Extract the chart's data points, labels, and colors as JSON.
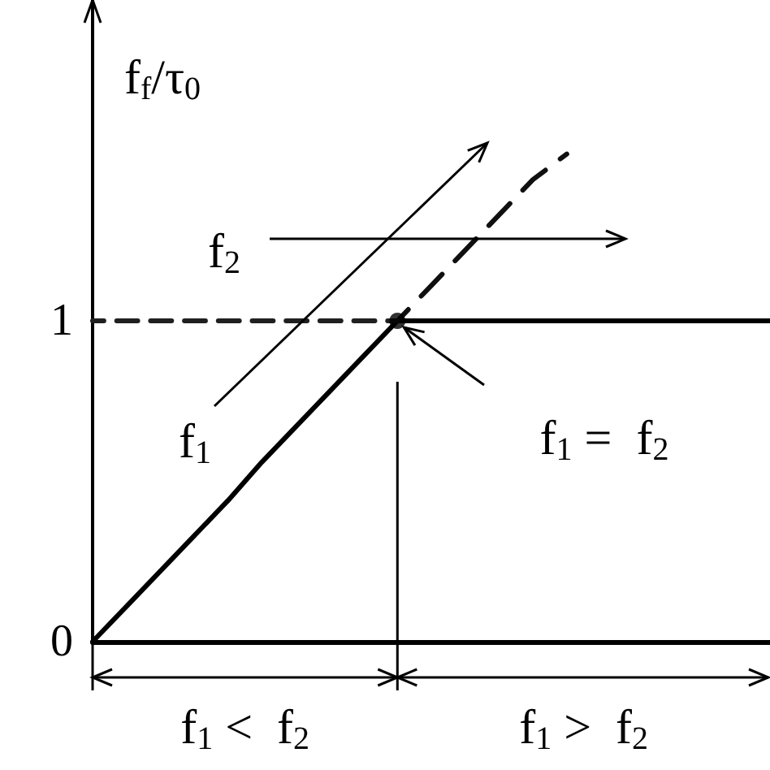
{
  "chart_data": {
    "type": "line",
    "ylabel": "f$_{f}$/τ$_{0}$",
    "categories": [
      null,
      null,
      null,
      null,
      null,
      null,
      null,
      null,
      null,
      null,
      null,
      null,
      null,
      null,
      null,
      null,
      null,
      null,
      null,
      null,
      null
    ],
    "series": [
      {
        "color": "#000000",
        "line_style": "solid",
        "values": [
          0,
          0.11,
          0.22,
          0.33,
          0.44,
          0.56,
          0.67,
          0.78,
          0.89,
          1,
          1,
          1,
          1,
          1,
          1,
          1,
          1,
          1,
          1,
          1,
          1
        ]
      },
      {
        "color": "#101010",
        "line_style": "dashed",
        "values": [
          null,
          null,
          null,
          null,
          null,
          null,
          null,
          null,
          null,
          1,
          1.11,
          1.22,
          1.33,
          1.44,
          1.52,
          null,
          null,
          null,
          null,
          null,
          null
        ]
      },
      {
        "color": "#202020",
        "line_style": "dashed",
        "values": [
          1,
          1,
          1,
          1,
          1,
          1,
          1,
          1,
          1,
          1,
          null,
          null,
          null,
          null,
          null,
          null,
          null,
          null,
          null,
          null,
          null
        ]
      },
      {
        "type": "scatter",
        "color": "#000000",
        "marker": "circle",
        "values": [
          null,
          null,
          null,
          null,
          null,
          null,
          null,
          null,
          null,
          1,
          null,
          null,
          null,
          null,
          null,
          null,
          null,
          null,
          null,
          null,
          null
        ]
      }
    ],
    "ylim": [
      0,
      2
    ],
    "yticks": [
      0,
      1
    ],
    "tick_labels": "y",
    "grid": false,
    "annotations": [
      "f$_{2}$",
      "f$_{1}$",
      "f$_{1}$ =  f$_{2}$",
      "f$_{1}$ <  f$_{2}$",
      "f$_{1}$ >  f$_{2}$"
    ]
  }
}
